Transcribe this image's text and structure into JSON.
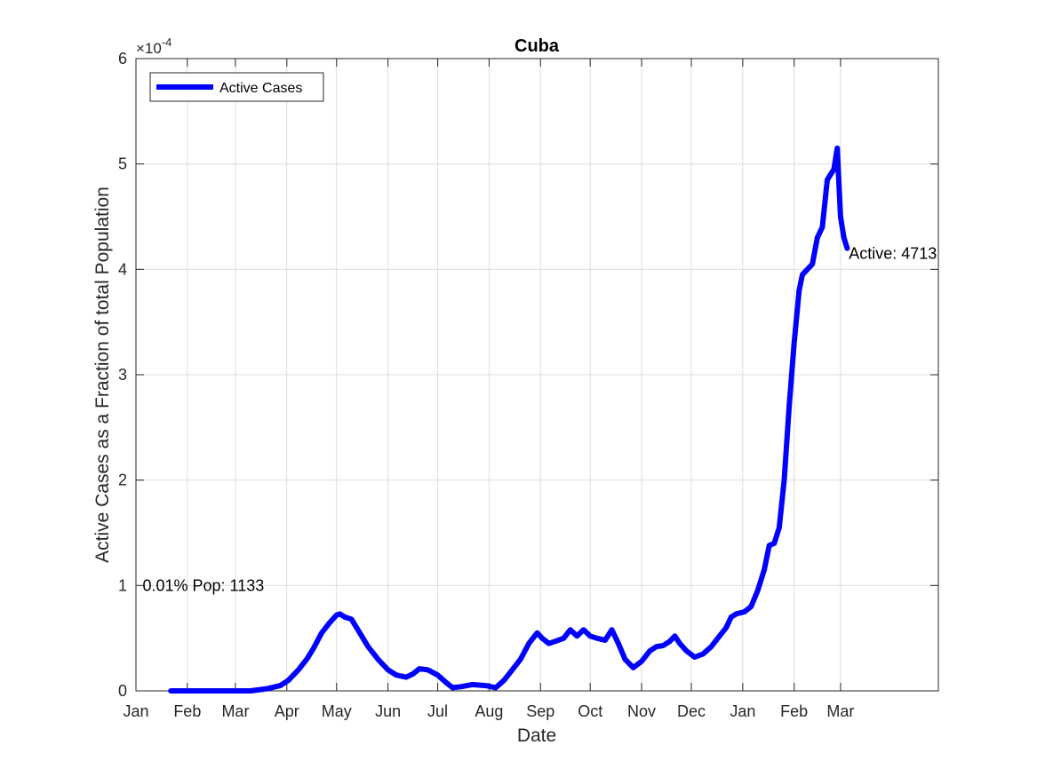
{
  "chart_data": {
    "type": "line",
    "title": "Cuba",
    "xlabel": "Date",
    "ylabel": "Active Cases as a Fraction of total Population",
    "y_multiplier": "×10",
    "y_multiplier_exponent": "-4",
    "ylim": [
      0,
      6
    ],
    "yticks": [
      "0",
      "1",
      "2",
      "3",
      "4",
      "5",
      "6"
    ],
    "xlim": [
      "2020-01-01",
      "2021-04-29"
    ],
    "xticks": [
      {
        "date": "2020-01-01",
        "label": "Jan"
      },
      {
        "date": "2020-02-01",
        "label": "Feb"
      },
      {
        "date": "2020-03-01",
        "label": "Mar"
      },
      {
        "date": "2020-04-01",
        "label": "Apr"
      },
      {
        "date": "2020-05-01",
        "label": "May"
      },
      {
        "date": "2020-06-01",
        "label": "Jun"
      },
      {
        "date": "2020-07-01",
        "label": "Jul"
      },
      {
        "date": "2020-08-01",
        "label": "Aug"
      },
      {
        "date": "2020-09-01",
        "label": "Sep"
      },
      {
        "date": "2020-10-01",
        "label": "Oct"
      },
      {
        "date": "2020-11-01",
        "label": "Nov"
      },
      {
        "date": "2020-12-01",
        "label": "Dec"
      },
      {
        "date": "2021-01-01",
        "label": "Jan"
      },
      {
        "date": "2021-02-01",
        "label": "Feb"
      },
      {
        "date": "2021-03-01",
        "label": "Mar"
      }
    ],
    "grid": true,
    "legend": {
      "placement": "top-left",
      "entries": [
        "Active Cases"
      ]
    },
    "series": [
      {
        "name": "Active Cases",
        "color": "#0000ff",
        "points": [
          [
            "2020-01-22",
            0
          ],
          [
            "2020-03-10",
            0
          ],
          [
            "2020-03-20",
            0.02
          ],
          [
            "2020-03-28",
            0.05
          ],
          [
            "2020-04-02",
            0.1
          ],
          [
            "2020-04-08",
            0.2
          ],
          [
            "2020-04-13",
            0.3
          ],
          [
            "2020-04-17",
            0.4
          ],
          [
            "2020-04-22",
            0.55
          ],
          [
            "2020-04-27",
            0.65
          ],
          [
            "2020-05-01",
            0.72
          ],
          [
            "2020-05-03",
            0.73
          ],
          [
            "2020-05-06",
            0.7
          ],
          [
            "2020-05-10",
            0.68
          ],
          [
            "2020-05-15",
            0.55
          ],
          [
            "2020-05-20",
            0.42
          ],
          [
            "2020-05-26",
            0.3
          ],
          [
            "2020-06-01",
            0.2
          ],
          [
            "2020-06-06",
            0.15
          ],
          [
            "2020-06-12",
            0.13
          ],
          [
            "2020-06-16",
            0.16
          ],
          [
            "2020-06-20",
            0.21
          ],
          [
            "2020-06-25",
            0.2
          ],
          [
            "2020-07-01",
            0.15
          ],
          [
            "2020-07-06",
            0.08
          ],
          [
            "2020-07-10",
            0.03
          ],
          [
            "2020-07-15",
            0.04
          ],
          [
            "2020-07-22",
            0.06
          ],
          [
            "2020-07-30",
            0.05
          ],
          [
            "2020-08-05",
            0.03
          ],
          [
            "2020-08-10",
            0.1
          ],
          [
            "2020-08-15",
            0.2
          ],
          [
            "2020-08-20",
            0.3
          ],
          [
            "2020-08-25",
            0.45
          ],
          [
            "2020-08-30",
            0.55
          ],
          [
            "2020-09-02",
            0.5
          ],
          [
            "2020-09-06",
            0.45
          ],
          [
            "2020-09-10",
            0.47
          ],
          [
            "2020-09-15",
            0.5
          ],
          [
            "2020-09-19",
            0.58
          ],
          [
            "2020-09-23",
            0.52
          ],
          [
            "2020-09-27",
            0.58
          ],
          [
            "2020-10-01",
            0.52
          ],
          [
            "2020-10-05",
            0.5
          ],
          [
            "2020-10-10",
            0.48
          ],
          [
            "2020-10-14",
            0.58
          ],
          [
            "2020-10-18",
            0.45
          ],
          [
            "2020-10-22",
            0.3
          ],
          [
            "2020-10-27",
            0.22
          ],
          [
            "2020-11-01",
            0.28
          ],
          [
            "2020-11-06",
            0.38
          ],
          [
            "2020-11-10",
            0.42
          ],
          [
            "2020-11-14",
            0.43
          ],
          [
            "2020-11-18",
            0.47
          ],
          [
            "2020-11-21",
            0.52
          ],
          [
            "2020-11-24",
            0.45
          ],
          [
            "2020-11-28",
            0.38
          ],
          [
            "2020-12-03",
            0.32
          ],
          [
            "2020-12-08",
            0.35
          ],
          [
            "2020-12-13",
            0.42
          ],
          [
            "2020-12-18",
            0.52
          ],
          [
            "2020-12-22",
            0.6
          ],
          [
            "2020-12-25",
            0.7
          ],
          [
            "2020-12-28",
            0.73
          ],
          [
            "2021-01-02",
            0.75
          ],
          [
            "2021-01-06",
            0.8
          ],
          [
            "2021-01-10",
            0.95
          ],
          [
            "2021-01-14",
            1.15
          ],
          [
            "2021-01-17",
            1.38
          ],
          [
            "2021-01-20",
            1.4
          ],
          [
            "2021-01-23",
            1.55
          ],
          [
            "2021-01-26",
            2.0
          ],
          [
            "2021-01-29",
            2.7
          ],
          [
            "2021-02-01",
            3.3
          ],
          [
            "2021-02-04",
            3.8
          ],
          [
            "2021-02-06",
            3.95
          ],
          [
            "2021-02-09",
            4.0
          ],
          [
            "2021-02-12",
            4.05
          ],
          [
            "2021-02-15",
            4.3
          ],
          [
            "2021-02-18",
            4.4
          ],
          [
            "2021-02-21",
            4.85
          ],
          [
            "2021-02-23",
            4.9
          ],
          [
            "2021-02-25",
            4.95
          ],
          [
            "2021-02-27",
            5.15
          ],
          [
            "2021-03-01",
            4.5
          ],
          [
            "2021-03-03",
            4.3
          ],
          [
            "2021-03-05",
            4.2
          ]
        ]
      }
    ],
    "annotations": [
      {
        "text": "0.01% Pop: 1133",
        "x": "2020-01-05",
        "y": 1.0
      },
      {
        "text": "Active: 4713",
        "x": "2021-03-06",
        "y": 4.15
      }
    ]
  }
}
